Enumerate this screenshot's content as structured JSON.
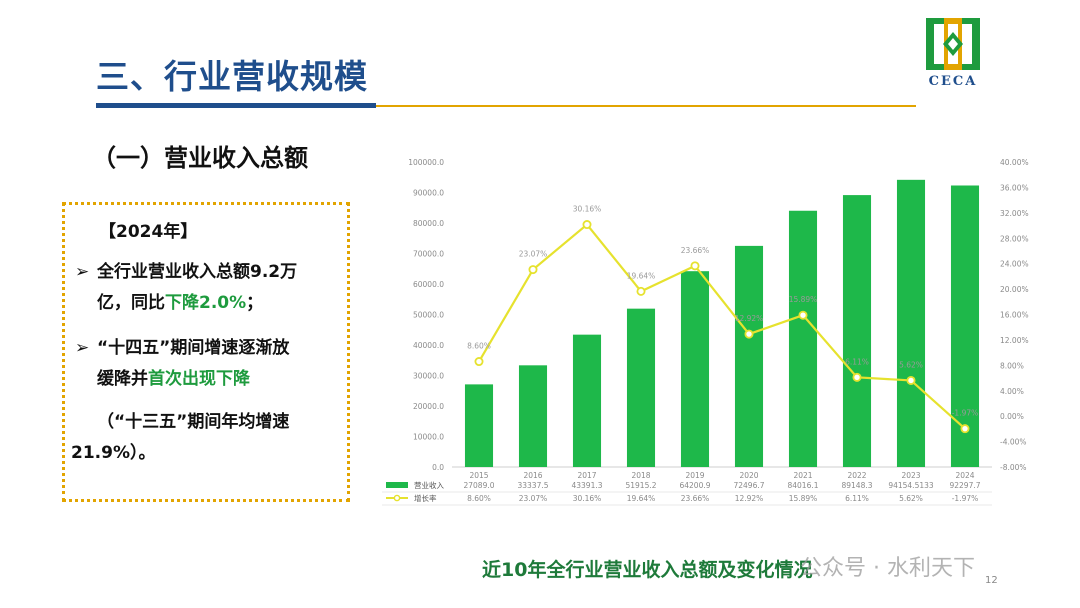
{
  "header": {
    "title": "三、行业营收规模",
    "logo_text": "CECA"
  },
  "section": {
    "subtitle": "（一）营业收入总额"
  },
  "textbox": {
    "year": "【2024年】",
    "bullet1": {
      "part1": "全行业营业收入总额9.2万",
      "part2": "亿，同比",
      "highlight": "下降2.0%",
      "end": "；"
    },
    "bullet2": {
      "part1": "“十四五”期间增速逐渐放",
      "part2": "缓降并",
      "highlight": "首次出现下降"
    },
    "note": {
      "line1": "（“十三五”期间年均增速",
      "line2": "21.9%）。"
    }
  },
  "caption": "近10年全行业营业收入总额及变化情况",
  "page_number": "12",
  "watermark": "公众号 · 水利天下",
  "colors": {
    "bar": "#1EB84A",
    "line": "#E6E22E",
    "title": "#1F4E8C",
    "accent_green": "#1E9B3E",
    "gold": "#E2A400"
  },
  "chart_data": {
    "type": "bar",
    "categories": [
      "2015",
      "2016",
      "2017",
      "2018",
      "2019",
      "2020",
      "2021",
      "2022",
      "2023",
      "2024"
    ],
    "series": [
      {
        "name": "营业收入",
        "type": "bar",
        "axis": "left",
        "values": [
          27089.0,
          33337.5,
          43391.3,
          51915.2,
          64200.9,
          72496.7,
          84016.1,
          89148.3,
          94154.5133,
          92297.7
        ],
        "labels": [
          "27089.0",
          "33337.5",
          "43391.3",
          "51915.2",
          "64200.9",
          "72496.7",
          "84016.1",
          "89148.3",
          "94154.5133",
          "92297.7"
        ]
      },
      {
        "name": "增长率",
        "type": "line",
        "axis": "right",
        "values": [
          8.6,
          23.07,
          30.16,
          19.64,
          23.66,
          12.92,
          15.89,
          6.11,
          5.62,
          -1.97
        ],
        "labels": [
          "8.60%",
          "23.07%",
          "30.16%",
          "19.64%",
          "23.66%",
          "12.92%",
          "15.89%",
          "6.11%",
          "5.62%",
          "-1.97%"
        ]
      }
    ],
    "y_left": {
      "min": 0,
      "max": 100000,
      "ticks": [
        "0.0",
        "10000.0",
        "20000.0",
        "30000.0",
        "40000.0",
        "50000.0",
        "60000.0",
        "70000.0",
        "80000.0",
        "90000.0",
        "100000.0"
      ]
    },
    "y_right": {
      "min": -8,
      "max": 40,
      "ticks": [
        "-8.00%",
        "-4.00%",
        "0.00%",
        "4.00%",
        "8.00%",
        "12.00%",
        "16.00%",
        "20.00%",
        "24.00%",
        "28.00%",
        "32.00%",
        "36.00%",
        "40.00%"
      ]
    },
    "grid": false,
    "legend": "table-below"
  }
}
